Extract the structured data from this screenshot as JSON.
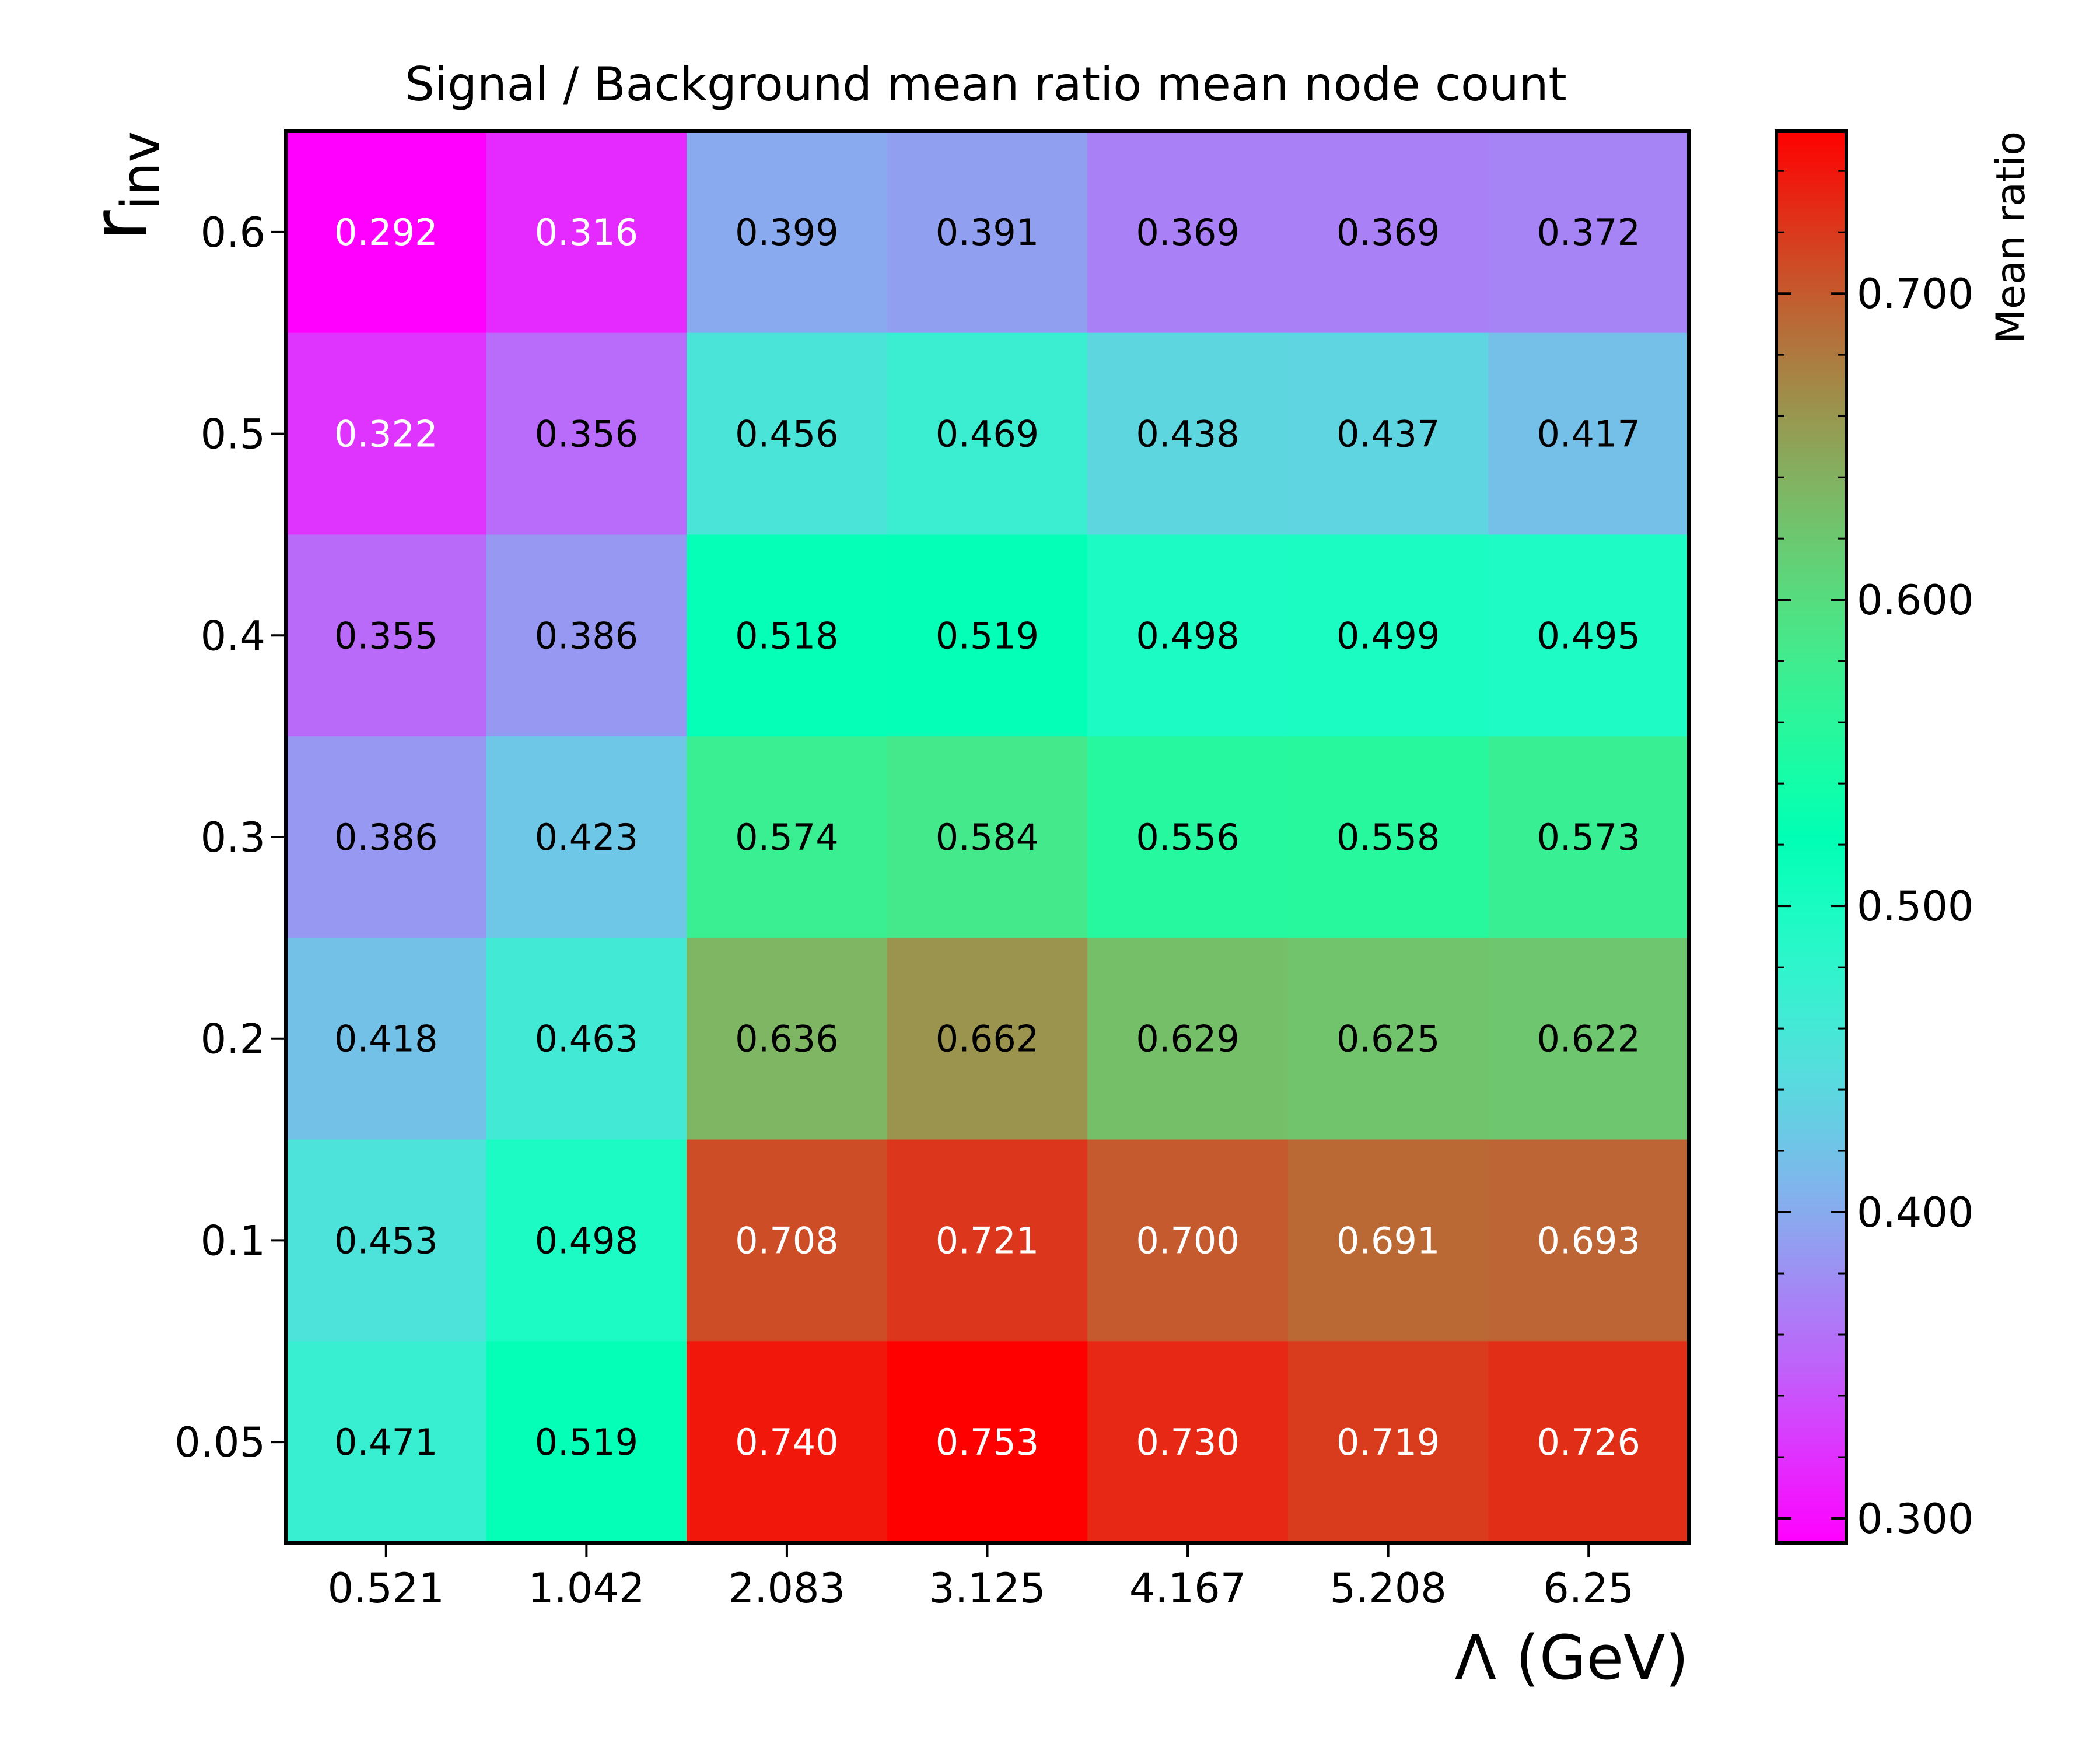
{
  "chart_data": {
    "type": "heatmap",
    "title": "Signal / Background mean ratio mean node count",
    "xlabel": "Λ (GeV)",
    "ylabel_main": "r",
    "ylabel_sub": "inv",
    "x_categories": [
      "0.521",
      "1.042",
      "2.083",
      "3.125",
      "4.167",
      "5.208",
      "6.25"
    ],
    "y_categories_top_to_bottom": [
      "0.6",
      "0.5",
      "0.4",
      "0.3",
      "0.2",
      "0.1",
      "0.05"
    ],
    "values": [
      [
        0.292,
        0.316,
        0.399,
        0.391,
        0.369,
        0.369,
        0.372
      ],
      [
        0.322,
        0.356,
        0.456,
        0.469,
        0.438,
        0.437,
        0.417
      ],
      [
        0.355,
        0.386,
        0.518,
        0.519,
        0.498,
        0.499,
        0.495
      ],
      [
        0.386,
        0.423,
        0.574,
        0.584,
        0.556,
        0.558,
        0.573
      ],
      [
        0.418,
        0.463,
        0.636,
        0.662,
        0.629,
        0.625,
        0.622
      ],
      [
        0.453,
        0.498,
        0.708,
        0.721,
        0.7,
        0.691,
        0.693
      ],
      [
        0.471,
        0.519,
        0.74,
        0.753,
        0.73,
        0.719,
        0.726
      ]
    ],
    "labels": [
      [
        "0.292",
        "0.316",
        "0.399",
        "0.391",
        "0.369",
        "0.369",
        "0.372"
      ],
      [
        "0.322",
        "0.356",
        "0.456",
        "0.469",
        "0.438",
        "0.437",
        "0.417"
      ],
      [
        "0.355",
        "0.386",
        "0.518",
        "0.519",
        "0.498",
        "0.499",
        "0.495"
      ],
      [
        "0.386",
        "0.423",
        "0.574",
        "0.584",
        "0.556",
        "0.558",
        "0.573"
      ],
      [
        "0.418",
        "0.463",
        "0.636",
        "0.662",
        "0.629",
        "0.625",
        "0.622"
      ],
      [
        "0.453",
        "0.498",
        "0.708",
        "0.721",
        "0.700",
        "0.691",
        "0.693"
      ],
      [
        "0.471",
        "0.519",
        "0.740",
        "0.753",
        "0.730",
        "0.719",
        "0.726"
      ]
    ],
    "colormap": "rainbow",
    "vmin": 0.292,
    "vmax": 0.753,
    "colorbar": {
      "label": "Mean ratio",
      "ticks": [
        0.3,
        0.4,
        0.5,
        0.6,
        0.7
      ],
      "tick_labels": [
        "0.300",
        "0.400",
        "0.500",
        "0.600",
        "0.700"
      ],
      "minor_step": 0.02
    }
  }
}
